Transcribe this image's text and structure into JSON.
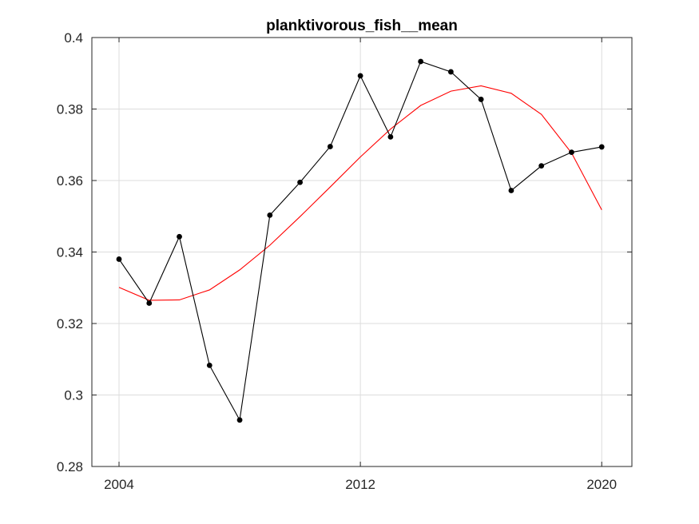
{
  "chart_data": {
    "type": "line",
    "title": "planktivorous_fish__mean",
    "xlabel": "",
    "ylabel": "",
    "xlim": [
      2003.1,
      2021
    ],
    "ylim": [
      0.28,
      0.4
    ],
    "xticks": [
      2004,
      2012,
      2020
    ],
    "xtick_labels": [
      "2004",
      "2012",
      "2020"
    ],
    "yticks": [
      0.28,
      0.3,
      0.32,
      0.34,
      0.36,
      0.38,
      0.4
    ],
    "ytick_labels": [
      "0.28",
      "0.3",
      "0.32",
      "0.34",
      "0.36",
      "0.38",
      "0.4"
    ],
    "grid": true,
    "series": [
      {
        "color": "#000000",
        "marker": "circle",
        "x": [
          2004,
          2005,
          2006,
          2007,
          2008,
          2009,
          2010,
          2011,
          2012,
          2013,
          2014,
          2015,
          2016,
          2017,
          2018,
          2019,
          2020
        ],
        "values": [
          0.338,
          0.3257,
          0.3443,
          0.3083,
          0.293,
          0.3503,
          0.3595,
          0.3695,
          0.3893,
          0.3722,
          0.3933,
          0.3904,
          0.3827,
          0.3572,
          0.3641,
          0.3679,
          0.3694
        ]
      },
      {
        "color": "#ff0000",
        "marker": "none",
        "x": [
          2004,
          2005,
          2006,
          2007,
          2008,
          2009,
          2010,
          2011,
          2012,
          2013,
          2014,
          2015,
          2016,
          2017,
          2018,
          2019,
          2020
        ],
        "values": [
          0.3301,
          0.3265,
          0.3266,
          0.3294,
          0.335,
          0.3419,
          0.3499,
          0.3582,
          0.3666,
          0.3744,
          0.381,
          0.385,
          0.3865,
          0.3844,
          0.3785,
          0.3677,
          0.3518
        ]
      }
    ]
  }
}
